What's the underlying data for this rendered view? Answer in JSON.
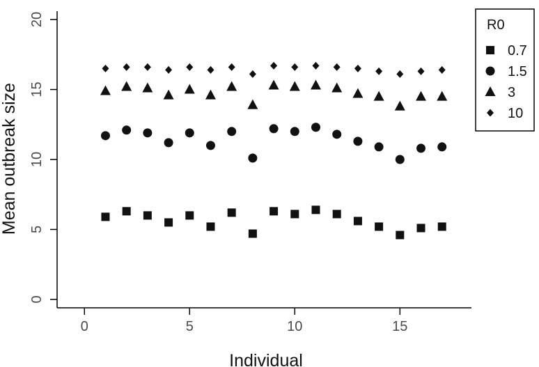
{
  "chart_data": {
    "type": "scatter",
    "xlabel": "Individual",
    "ylabel": "Mean outbreak size",
    "xlim": [
      -1.3,
      18.4
    ],
    "ylim": [
      -0.6,
      20.6
    ],
    "xticks": [
      "0",
      "5",
      "10",
      "15"
    ],
    "yticks": [
      "0",
      "5",
      "10",
      "15",
      "20"
    ],
    "grid": false,
    "legend": {
      "title": "R0",
      "position": "top-right"
    },
    "x": [
      1,
      2,
      3,
      4,
      5,
      6,
      7,
      8,
      9,
      10,
      11,
      12,
      13,
      14,
      15,
      16,
      17
    ],
    "series": [
      {
        "name": "0.7",
        "marker": "square",
        "values": [
          5.9,
          6.3,
          6.0,
          5.5,
          6.0,
          5.2,
          6.2,
          4.7,
          6.3,
          6.1,
          6.4,
          6.1,
          5.6,
          5.2,
          4.6,
          5.1,
          5.2
        ]
      },
      {
        "name": "1.5",
        "marker": "circle",
        "values": [
          11.7,
          12.1,
          11.9,
          11.2,
          11.9,
          11.0,
          12.0,
          10.1,
          12.2,
          12.0,
          12.3,
          11.8,
          11.3,
          10.9,
          10.0,
          10.8,
          10.9
        ]
      },
      {
        "name": "3",
        "marker": "triangle",
        "values": [
          14.9,
          15.2,
          15.1,
          14.6,
          15.0,
          14.6,
          15.2,
          13.9,
          15.3,
          15.2,
          15.3,
          15.1,
          14.7,
          14.5,
          13.8,
          14.5,
          14.5
        ]
      },
      {
        "name": "10",
        "marker": "diamond",
        "values": [
          16.5,
          16.6,
          16.6,
          16.4,
          16.6,
          16.4,
          16.6,
          16.1,
          16.7,
          16.6,
          16.7,
          16.6,
          16.5,
          16.3,
          16.1,
          16.3,
          16.4
        ]
      }
    ],
    "colors": {
      "marker": "#111111",
      "axis": "#000000",
      "tick_label": "#4a4a4a"
    }
  }
}
